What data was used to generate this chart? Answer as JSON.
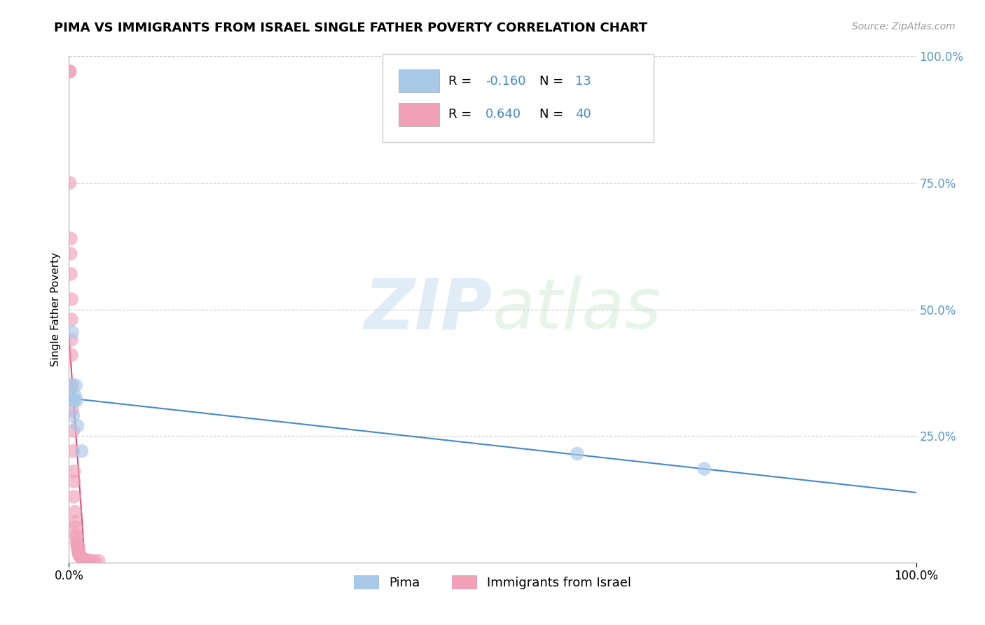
{
  "title": "PIMA VS IMMIGRANTS FROM ISRAEL SINGLE FATHER POVERTY CORRELATION CHART",
  "source": "Source: ZipAtlas.com",
  "ylabel": "Single Father Poverty",
  "xlim": [
    0.0,
    1.0
  ],
  "ylim": [
    0.0,
    1.0
  ],
  "pima_color": "#a8c8e8",
  "israel_color": "#f0a0b8",
  "pima_line_color": "#4488cc",
  "israel_line_color": "#e04878",
  "pima_R": -0.16,
  "pima_N": 13,
  "israel_R": 0.64,
  "israel_N": 40,
  "legend_pima_label": "Pima",
  "legend_israel_label": "Immigrants from Israel",
  "watermark_zip": "ZIP",
  "watermark_atlas": "atlas",
  "pima_x": [
    0.002,
    0.003,
    0.004,
    0.005,
    0.005,
    0.006,
    0.007,
    0.008,
    0.009,
    0.01,
    0.015,
    0.6,
    0.75
  ],
  "pima_y": [
    0.33,
    0.35,
    0.455,
    0.32,
    0.29,
    0.32,
    0.33,
    0.35,
    0.32,
    0.27,
    0.22,
    0.215,
    0.185
  ],
  "israel_x": [
    0.001,
    0.001,
    0.001,
    0.002,
    0.002,
    0.002,
    0.003,
    0.003,
    0.003,
    0.003,
    0.004,
    0.004,
    0.005,
    0.005,
    0.006,
    0.006,
    0.006,
    0.007,
    0.007,
    0.008,
    0.008,
    0.009,
    0.009,
    0.01,
    0.01,
    0.011,
    0.011,
    0.012,
    0.012,
    0.013,
    0.014,
    0.015,
    0.016,
    0.017,
    0.018,
    0.019,
    0.02,
    0.025,
    0.03,
    0.035
  ],
  "israel_y": [
    0.97,
    0.97,
    0.75,
    0.64,
    0.61,
    0.57,
    0.52,
    0.48,
    0.44,
    0.41,
    0.35,
    0.3,
    0.26,
    0.22,
    0.18,
    0.16,
    0.13,
    0.1,
    0.08,
    0.07,
    0.055,
    0.05,
    0.04,
    0.035,
    0.03,
    0.025,
    0.02,
    0.018,
    0.015,
    0.013,
    0.01,
    0.009,
    0.008,
    0.007,
    0.006,
    0.005,
    0.005,
    0.004,
    0.003,
    0.003
  ]
}
